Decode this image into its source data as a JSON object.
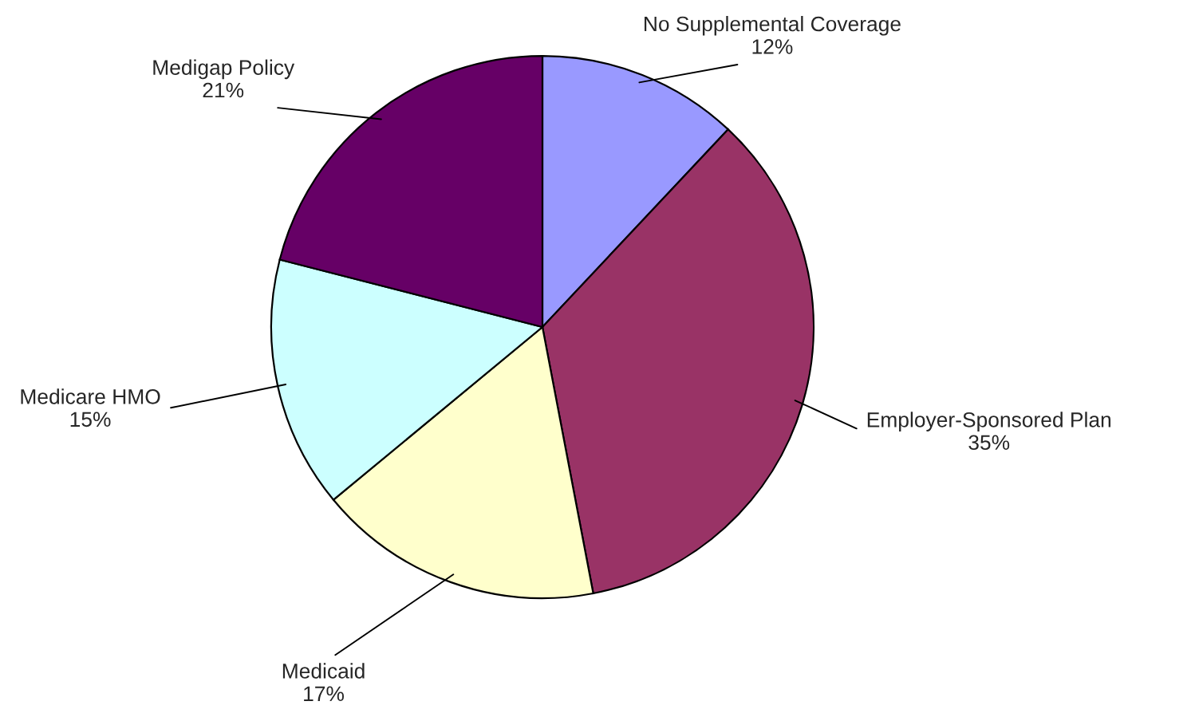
{
  "chart_data": {
    "type": "pie",
    "categories": [
      "No Supplemental Coverage",
      "Employer-Sponsored Plan",
      "Medicaid",
      "Medicare HMO",
      "Medigap Policy"
    ],
    "values": [
      12,
      35,
      17,
      15,
      21
    ],
    "colors": [
      "#9999ff",
      "#993366",
      "#ffffcc",
      "#ccffff",
      "#660066"
    ],
    "value_labels": [
      "12%",
      "35%",
      "17%",
      "15%",
      "21%"
    ]
  }
}
